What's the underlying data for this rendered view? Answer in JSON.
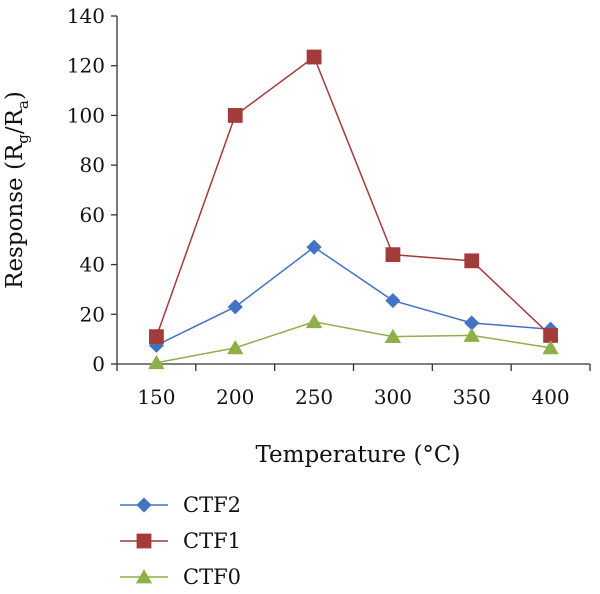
{
  "chart_data": {
    "type": "line",
    "xlabel": "Temperature (°C)",
    "ylabel": {
      "text": "Response (R",
      "sub1": "g",
      "mid": "/R",
      "sub2": "a",
      "end": ")"
    },
    "categories": [
      "150",
      "200",
      "250",
      "300",
      "350",
      "400"
    ],
    "ylim": [
      0,
      140
    ],
    "yticks": [
      "0",
      "20",
      "40",
      "60",
      "80",
      "100",
      "120",
      "140"
    ],
    "grid": false,
    "legend_position": "bottom-left",
    "series": [
      {
        "name": "CTF2",
        "color": "#4472C4",
        "marker": "diamond",
        "values": [
          7.5,
          23,
          47,
          25.5,
          16.5,
          14
        ]
      },
      {
        "name": "CTF1",
        "color": "#A33B3B",
        "marker": "square",
        "values": [
          11,
          100,
          123.5,
          44,
          41.5,
          11.5
        ]
      },
      {
        "name": "CTF0",
        "color": "#8DB048",
        "marker": "triangle",
        "values": [
          0.5,
          6.5,
          17,
          11,
          11.5,
          6.5
        ]
      }
    ]
  }
}
